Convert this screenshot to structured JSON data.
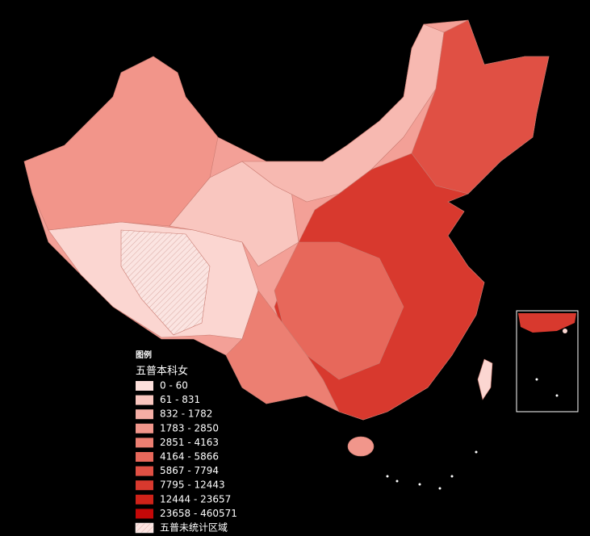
{
  "legend": {
    "title": "图例",
    "subtitle": "五普本科女",
    "items": [
      {
        "label": "0 - 60",
        "color": "#fde0dc"
      },
      {
        "label": "61 - 831",
        "color": "#f9c6bf"
      },
      {
        "label": "832 - 1782",
        "color": "#f5aea5"
      },
      {
        "label": "1783 - 2850",
        "color": "#f1968b"
      },
      {
        "label": "2851 - 4163",
        "color": "#ec7f72"
      },
      {
        "label": "4164 - 5866",
        "color": "#e7685b"
      },
      {
        "label": "5867 - 7794",
        "color": "#e05044"
      },
      {
        "label": "7795 - 12443",
        "color": "#d8392e"
      },
      {
        "label": "12444 - 23657",
        "color": "#cf2219"
      },
      {
        "label": "23658 - 460571",
        "color": "#c40808"
      }
    ],
    "hatched_label": "五普未统计区域"
  }
}
